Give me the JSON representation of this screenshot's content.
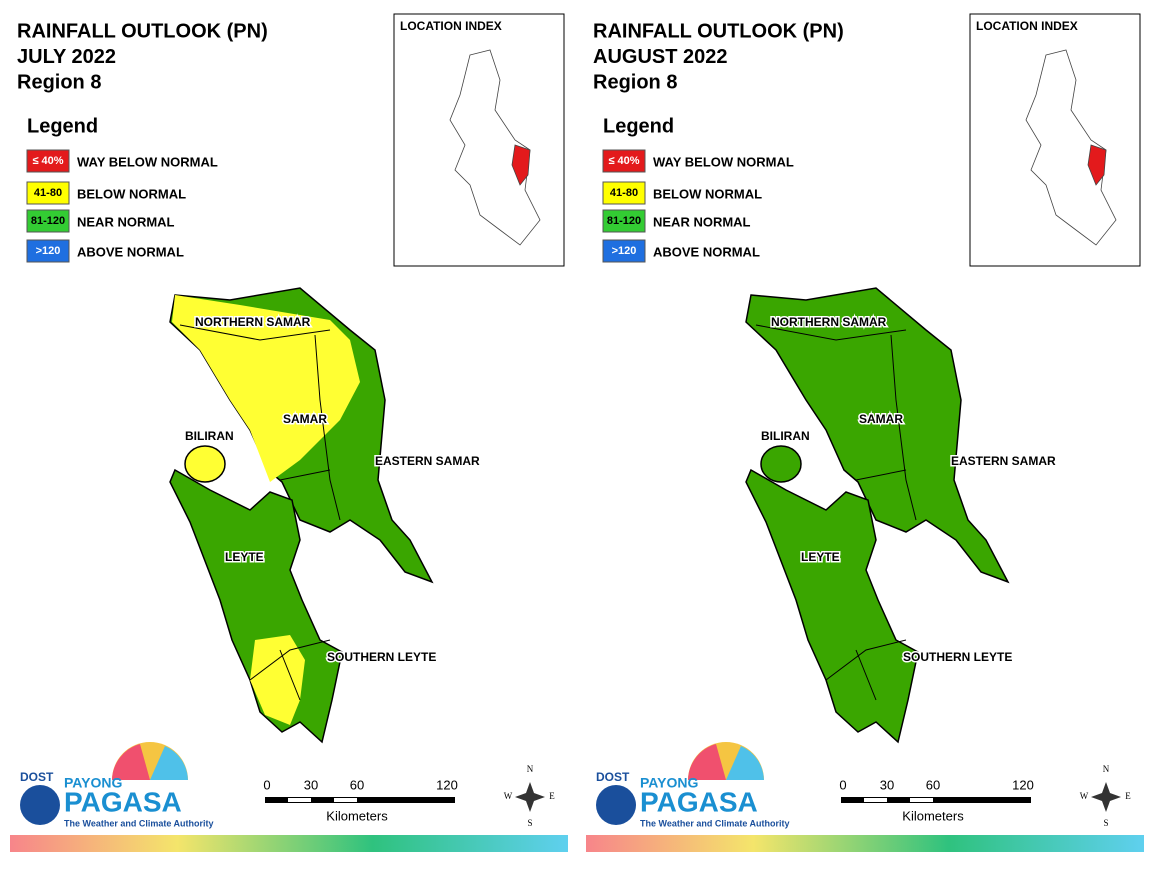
{
  "panels": [
    {
      "title_lines": [
        "RAINFALL OUTLOOK (PN)",
        "JULY 2022",
        "Region 8"
      ]
    },
    {
      "title_lines": [
        "RAINFALL OUTLOOK (PN)",
        "AUGUST 2022",
        "Region 8"
      ]
    }
  ],
  "legend": {
    "title": "Legend",
    "items": [
      {
        "code": "≤ 40%",
        "label": "WAY BELOW NORMAL"
      },
      {
        "code": "41-80",
        "label": "BELOW NORMAL"
      },
      {
        "code": "81-120",
        "label": "NEAR NORMAL"
      },
      {
        "code": ">120",
        "label": "ABOVE NORMAL"
      }
    ]
  },
  "location_index": "LOCATION INDEX",
  "provinces": [
    "NORTHERN SAMAR",
    "SAMAR",
    "BILIRAN",
    "EASTERN SAMAR",
    "LEYTE",
    "SOUTHERN LEYTE"
  ],
  "scale": {
    "labels": [
      "0",
      "30",
      "60",
      "120"
    ],
    "unit": "Kilometers"
  },
  "compass": [
    "N",
    "S",
    "E",
    "W"
  ],
  "logo": {
    "agency": "DOST",
    "brand_top": "PAYONG",
    "brand": "PAGASA",
    "tagline": "The Weather and Climate Authority"
  }
}
